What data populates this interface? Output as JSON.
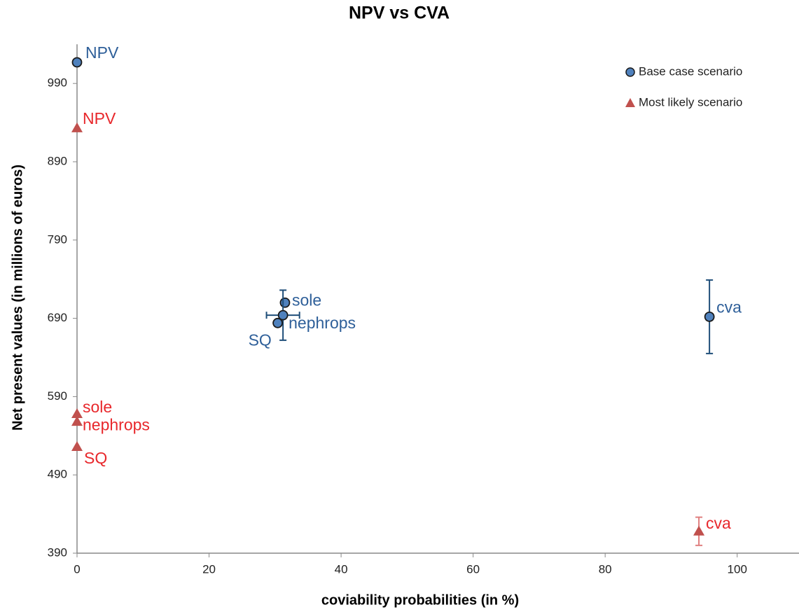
{
  "chart_data": {
    "type": "scatter",
    "title": "NPV vs CVA",
    "xlabel": "coviability probabilities (in %)",
    "ylabel": "Net present values (in millions of euros)",
    "xlim": [
      0,
      110
    ],
    "ylim": [
      390,
      1040
    ],
    "xticks": [
      0,
      20,
      40,
      60,
      80,
      100
    ],
    "yticks": [
      390,
      490,
      590,
      690,
      790,
      890,
      990
    ],
    "grid": false,
    "legend": "upper right",
    "series": [
      {
        "name": "Base case scenario",
        "marker": "circle",
        "color": "#4f81bd",
        "label_color": "#2e5f99",
        "labels": [
          "NPV",
          "sole",
          "nephrops",
          "SQ",
          "cva"
        ],
        "x": [
          0,
          31.5,
          31.2,
          30.4,
          95.8
        ],
        "values": [
          1017,
          710,
          694,
          684,
          692
        ],
        "xerr": [
          null,
          null,
          2.5,
          null,
          0.5
        ],
        "yerr": [
          null,
          null,
          32,
          null,
          47
        ]
      },
      {
        "name": "Most likely scenario",
        "marker": "triangle",
        "color": "#c0504d",
        "label_color": "#e8282c",
        "labels": [
          "NPV",
          "sole",
          "nephrops",
          "SQ",
          "cva"
        ],
        "x": [
          0,
          0,
          0,
          0,
          94.2
        ],
        "values": [
          933,
          568,
          558,
          526,
          418
        ],
        "xerr": [
          null,
          null,
          null,
          null,
          null
        ],
        "yerr": [
          null,
          null,
          null,
          null,
          18
        ]
      }
    ]
  }
}
